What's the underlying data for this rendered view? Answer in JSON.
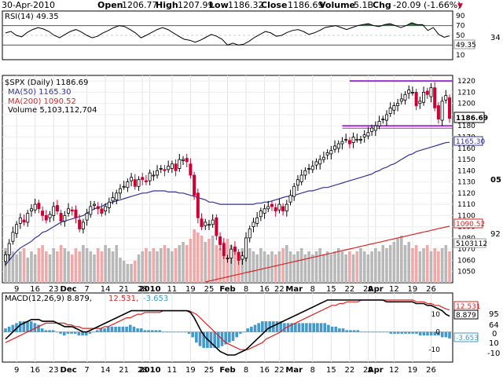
{
  "header": {
    "date": "30-Apr-2010",
    "open_label": "Open",
    "open": "1206.77",
    "high_label": "High",
    "high": "1207.99",
    "low_label": "Low",
    "low": "1186.32",
    "close_label": "Close",
    "close": "1186.69",
    "volume_label": "Volume",
    "volume": "5.1B",
    "chg_label": "Chg",
    "chg": "-20.09 (-1.66%)",
    "chg_arrow": "▼"
  },
  "colors": {
    "up": "#000000",
    "down": "#cc0033",
    "ma50": "#333399",
    "ma200": "#dd2222",
    "vol_up": "#b8b8b8",
    "vol_down": "#f0a8a8",
    "rsi_fill": "#2a6e3a",
    "macd_hist": "#4499cc",
    "channel": "#9933cc"
  },
  "chart_data": [
    {
      "type": "line",
      "title": "RSI(14) 49.35",
      "legend": "RSI(14) 49.35",
      "ylim": [
        0,
        100
      ],
      "y_ticks": [
        "90",
        "70",
        "50",
        "30",
        "10"
      ],
      "reference_lines": [
        70,
        30
      ],
      "right_labels": {
        "value": "49.35",
        "badge": "34"
      },
      "values": [
        55,
        58,
        50,
        47,
        56,
        62,
        66,
        63,
        58,
        50,
        45,
        52,
        58,
        62,
        57,
        50,
        45,
        48,
        55,
        60,
        66,
        70,
        68,
        62,
        55,
        45,
        50,
        56,
        62,
        66,
        62,
        55,
        48,
        42,
        40,
        36,
        40,
        46,
        52,
        48,
        42,
        30,
        34,
        30,
        32,
        38,
        46,
        52,
        58,
        55,
        48,
        50,
        56,
        60,
        62,
        58,
        52,
        55,
        60,
        66,
        68,
        70,
        66,
        62,
        66,
        70,
        72,
        74,
        70,
        68,
        72,
        74,
        70,
        66,
        70,
        76,
        72,
        72,
        60,
        66,
        52,
        46,
        49
      ]
    },
    {
      "type": "candlestick",
      "title": "$SPX (Daily) 1186.69",
      "legend": [
        {
          "label": "$SPX (Daily) 1186.69"
        },
        {
          "label": "MA(50) 1165.30"
        },
        {
          "label": "MA(200) 1090.52"
        },
        {
          "label": "Volume 5,103,112,704"
        }
      ],
      "ylim": [
        1040,
        1225
      ],
      "y_ticks": [
        "1220",
        "1210",
        "1200",
        "1190",
        "1180",
        "1170",
        "1160",
        "1150",
        "1140",
        "1130",
        "1120",
        "1110",
        "1100",
        "1090",
        "1080",
        "1070",
        "1060",
        "1050"
      ],
      "x_ticks": [
        {
          "label": "9"
        },
        {
          "label": "16"
        },
        {
          "label": "23"
        },
        {
          "label": "Dec"
        },
        {
          "label": "7"
        },
        {
          "label": "14"
        },
        {
          "label": "21"
        },
        {
          "label": "28"
        },
        {
          "label": "2010"
        },
        {
          "label": "11"
        },
        {
          "label": "19"
        },
        {
          "label": "25"
        },
        {
          "label": "Feb"
        },
        {
          "label": "8"
        },
        {
          "label": "16"
        },
        {
          "label": "22"
        },
        {
          "label": "Mar"
        },
        {
          "label": "8"
        },
        {
          "label": "15"
        },
        {
          "label": "22"
        },
        {
          "label": "29"
        },
        {
          "label": "Apr"
        },
        {
          "label": "12"
        },
        {
          "label": "19"
        },
        {
          "label": "26"
        }
      ],
      "x_tick_index": [
        3,
        8,
        13,
        17,
        22,
        27,
        32,
        37,
        39,
        45,
        50,
        55,
        60,
        65,
        70,
        74,
        78,
        83,
        88,
        93,
        98,
        100,
        105,
        110,
        115
      ],
      "close": [
        1065,
        1075,
        1085,
        1092,
        1098,
        1094,
        1102,
        1106,
        1110,
        1106,
        1100,
        1096,
        1101,
        1108,
        1104,
        1095,
        1100,
        1106,
        1104,
        1098,
        1088,
        1094,
        1102,
        1108,
        1110,
        1106,
        1102,
        1108,
        1112,
        1116,
        1120,
        1124,
        1126,
        1130,
        1134,
        1126,
        1132,
        1132,
        1130,
        1138,
        1136,
        1140,
        1142,
        1140,
        1144,
        1146,
        1140,
        1150,
        1150,
        1148,
        1136,
        1118,
        1098,
        1090,
        1094,
        1092,
        1096,
        1082,
        1074,
        1064,
        1062,
        1070,
        1068,
        1060,
        1064,
        1080,
        1088,
        1094,
        1098,
        1104,
        1106,
        1108,
        1108,
        1104,
        1110,
        1104,
        1110,
        1118,
        1126,
        1132,
        1136,
        1140,
        1142,
        1144,
        1148,
        1150,
        1152,
        1156,
        1158,
        1162,
        1164,
        1166,
        1168,
        1164,
        1170,
        1168,
        1168,
        1172,
        1174,
        1178,
        1180,
        1184,
        1186,
        1190,
        1196,
        1198,
        1200,
        1204,
        1208,
        1212,
        1210,
        1198,
        1202,
        1210,
        1208,
        1214,
        1196,
        1186,
        1202,
        1207,
        1186.69
      ],
      "ma50": [
        1056,
        1060,
        1064,
        1068,
        1071,
        1073,
        1075,
        1077,
        1080,
        1082,
        1085,
        1086,
        1088,
        1090,
        1092,
        1094,
        1095,
        1096,
        1097,
        1098,
        1099,
        1100,
        1102,
        1104,
        1106,
        1107,
        1108,
        1110,
        1111,
        1112,
        1113,
        1114,
        1115,
        1116,
        1117,
        1118,
        1119,
        1120,
        1120,
        1121,
        1122,
        1122,
        1122,
        1122,
        1121,
        1121,
        1121,
        1120,
        1120,
        1119,
        1118,
        1117,
        1116,
        1115,
        1114,
        1112,
        1112,
        1111,
        1110,
        1110,
        1110,
        1110,
        1110,
        1110,
        1110,
        1110,
        1110,
        1110,
        1111,
        1111,
        1112,
        1112,
        1113,
        1114,
        1115,
        1116,
        1117,
        1117,
        1118,
        1119,
        1120,
        1121,
        1122,
        1122,
        1123,
        1124,
        1125,
        1125,
        1126,
        1127,
        1128,
        1129,
        1130,
        1131,
        1132,
        1133,
        1134,
        1135,
        1136,
        1137,
        1139,
        1140,
        1142,
        1143,
        1145,
        1146,
        1148,
        1150,
        1152,
        1154,
        1155,
        1157,
        1158,
        1159,
        1160,
        1161,
        1162,
        1163,
        1164,
        1165,
        1165.3
      ],
      "ma200_range": [
        1000,
        1090.52
      ],
      "volume_relative": [
        0.55,
        0.6,
        0.5,
        0.45,
        0.5,
        0.55,
        0.4,
        0.5,
        0.45,
        0.55,
        0.6,
        0.5,
        0.45,
        0.55,
        0.5,
        0.6,
        0.55,
        0.5,
        0.45,
        0.55,
        0.5,
        0.6,
        0.55,
        0.5,
        0.45,
        0.55,
        0.5,
        0.6,
        0.55,
        0.5,
        0.6,
        0.4,
        0.35,
        0.3,
        0.3,
        0.35,
        0.45,
        0.5,
        0.55,
        0.5,
        0.55,
        0.5,
        0.55,
        0.6,
        0.55,
        0.5,
        0.55,
        0.6,
        0.65,
        0.6,
        0.7,
        0.85,
        0.8,
        0.75,
        0.65,
        0.7,
        0.75,
        0.6,
        0.55,
        0.65,
        0.7,
        0.6,
        0.55,
        0.5,
        0.55,
        0.6,
        0.55,
        0.5,
        0.45,
        0.55,
        0.5,
        0.45,
        0.5,
        0.45,
        0.5,
        0.55,
        0.6,
        0.5,
        0.45,
        0.5,
        0.55,
        0.45,
        0.5,
        0.45,
        0.5,
        0.55,
        0.45,
        0.5,
        0.45,
        0.5,
        0.55,
        0.5,
        0.45,
        0.5,
        0.45,
        0.5,
        0.55,
        0.5,
        0.45,
        0.5,
        0.55,
        0.5,
        0.6,
        0.55,
        0.6,
        0.65,
        0.7,
        0.75,
        0.6,
        0.65,
        0.55,
        0.6,
        0.5,
        0.55,
        0.6,
        0.5,
        0.55,
        0.5,
        0.55,
        0.6,
        0.5
      ],
      "channel_lines": [
        1220,
        1180
      ],
      "right_labels": {
        "last": "1186.69",
        "top": "1210",
        "ma50": "1165.30",
        "ma200": "1090.52",
        "badge_top": "05",
        "badge_mid": "92",
        "volume": "5103112"
      }
    },
    {
      "type": "line",
      "title": "MACD(12,26,9) 8.879, 12.531, -3.653",
      "legend": [
        {
          "label": "MACD(12,26,9) 8.879,"
        },
        {
          "label": "12.531,"
        },
        {
          "label": "-3.653"
        }
      ],
      "y_ticks": [
        "10",
        "0",
        "-10"
      ],
      "ylim": [
        -17,
        22
      ],
      "series": [
        {
          "name": "MACD",
          "values": [
            -4,
            -2,
            0,
            2,
            4,
            5,
            6,
            7,
            7,
            7,
            6,
            6,
            6,
            6,
            5,
            4,
            3,
            3,
            3,
            2,
            1,
            0,
            0,
            1,
            2,
            3,
            4,
            5,
            6,
            7,
            8,
            9,
            10,
            11,
            12,
            12,
            12,
            12,
            12,
            12,
            12,
            12,
            12,
            12,
            12,
            12,
            12,
            12,
            12,
            12,
            11,
            8,
            4,
            0,
            -3,
            -5,
            -7,
            -9,
            -11,
            -12,
            -13,
            -13,
            -13,
            -12,
            -11,
            -10,
            -8,
            -6,
            -4,
            -2,
            0,
            2,
            3,
            4,
            5,
            6,
            7,
            8,
            9,
            10,
            11,
            12,
            13,
            14,
            15,
            16,
            17,
            18,
            18,
            18,
            18,
            18,
            18,
            18,
            18,
            18,
            18,
            18,
            18,
            18,
            18,
            18,
            18,
            17,
            17,
            17,
            17,
            17,
            17,
            17,
            17,
            16,
            16,
            16,
            15,
            15,
            14,
            13,
            12,
            10,
            8.879
          ]
        },
        {
          "name": "Signal",
          "values": [
            -6,
            -5,
            -4,
            -3,
            -2,
            -1,
            0,
            1,
            2,
            3,
            4,
            5,
            5,
            5,
            5,
            5,
            5,
            4,
            4,
            3,
            3,
            2,
            2,
            2,
            2,
            2,
            2,
            3,
            3,
            4,
            5,
            6,
            7,
            8,
            8,
            9,
            10,
            10,
            11,
            11,
            11,
            11,
            11,
            12,
            12,
            12,
            12,
            12,
            12,
            12,
            12,
            11,
            10,
            8,
            6,
            4,
            2,
            0,
            -2,
            -4,
            -6,
            -7,
            -8,
            -9,
            -10,
            -10,
            -10,
            -9,
            -8,
            -7,
            -6,
            -4,
            -3,
            -2,
            -1,
            0,
            2,
            3,
            4,
            5,
            6,
            7,
            8,
            9,
            10,
            11,
            12,
            13,
            14,
            15,
            15,
            16,
            16,
            17,
            17,
            17,
            17,
            18,
            18,
            18,
            18,
            18,
            18,
            18,
            18,
            18,
            18,
            18,
            18,
            18,
            18,
            18,
            17,
            17,
            17,
            16,
            16,
            15,
            15,
            14,
            13,
            12.531
          ]
        },
        {
          "name": "Histogram",
          "values": [
            2,
            3,
            4,
            5,
            6,
            6,
            6,
            6,
            5,
            4,
            2,
            1,
            1,
            1,
            0,
            -1,
            -2,
            -1,
            -1,
            -1,
            -2,
            -2,
            -2,
            -1,
            0,
            1,
            2,
            2,
            3,
            3,
            3,
            3,
            3,
            3,
            4,
            3,
            2,
            2,
            1,
            1,
            1,
            1,
            1,
            0,
            0,
            0,
            0,
            0,
            0,
            0,
            -1,
            -3,
            -6,
            -8,
            -9,
            -9,
            -9,
            -9,
            -9,
            -8,
            -7,
            -6,
            -5,
            -3,
            -1,
            0,
            2,
            3,
            4,
            5,
            6,
            6,
            6,
            6,
            6,
            6,
            5,
            5,
            5,
            5,
            5,
            5,
            5,
            5,
            5,
            5,
            5,
            5,
            4,
            3,
            3,
            2,
            2,
            1,
            1,
            1,
            1,
            0,
            0,
            0,
            0,
            0,
            0,
            0,
            0,
            -1,
            -1,
            -1,
            -1,
            -1,
            -1,
            -1,
            -1,
            -2,
            -2,
            -2,
            -2,
            -2,
            -2,
            -3,
            -3,
            -3.653
          ]
        }
      ],
      "right_labels": {
        "signal": "12.531",
        "macd": "8.879",
        "hist": "-3.653",
        "badge_a": "95",
        "badge_b": "64",
        "badge_c": "0",
        "badge_d": "10",
        "badge_e": "-10"
      }
    }
  ]
}
